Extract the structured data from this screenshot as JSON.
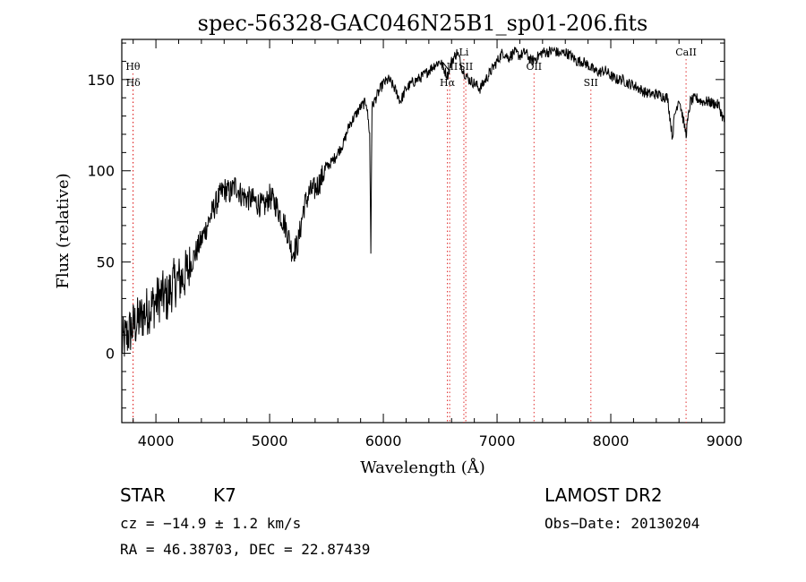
{
  "chart_data": {
    "type": "line",
    "title": "spec-56328-GAC046N25B1_sp01-206.fits",
    "xlabel": "Wavelength (Å)",
    "ylabel": "Flux (relative)",
    "xlim": [
      3700,
      9000
    ],
    "ylim": [
      -38,
      172
    ],
    "x_ticks": [
      4000,
      5000,
      6000,
      7000,
      8000,
      9000
    ],
    "y_ticks": [
      0,
      50,
      100,
      150
    ],
    "x_tick_labels": [
      "4000",
      "5000",
      "6000",
      "7000",
      "8000",
      "9000"
    ],
    "y_tick_labels": [
      "0",
      "50",
      "100",
      "150"
    ],
    "grid": false,
    "line_color": "#000000",
    "marker_color": "#e03030",
    "series": [
      {
        "x": [
          3700,
          3750,
          3800,
          3850,
          3900,
          3950,
          4000,
          4050,
          4100,
          4150,
          4200,
          4250,
          4300,
          4350,
          4400,
          4450,
          4500,
          4550,
          4600,
          4650,
          4700,
          4750,
          4800,
          4850,
          4900,
          4950,
          5000,
          5050,
          5100,
          5150,
          5200,
          5250,
          5300,
          5350,
          5400,
          5450,
          5500,
          5550,
          5600,
          5650,
          5700,
          5750,
          5800,
          5850,
          5880,
          5890,
          5900,
          5950,
          6000,
          6050,
          6100,
          6150,
          6200,
          6250,
          6300,
          6350,
          6400,
          6450,
          6500,
          6563,
          6600,
          6650,
          6700,
          6750,
          6800,
          6850,
          6900,
          6950,
          7000,
          7050,
          7100,
          7150,
          7200,
          7250,
          7300,
          7350,
          7400,
          7450,
          7500,
          7550,
          7600,
          7650,
          7700,
          7750,
          7800,
          7850,
          7900,
          7950,
          8000,
          8050,
          8100,
          8150,
          8200,
          8250,
          8300,
          8350,
          8400,
          8450,
          8500,
          8542,
          8560,
          8600,
          8662,
          8700,
          8750,
          8800,
          8850,
          8900,
          8950,
          8980,
          9000
        ],
        "y": [
          5,
          10,
          15,
          18,
          22,
          25,
          28,
          32,
          30,
          38,
          40,
          42,
          48,
          55,
          62,
          70,
          78,
          85,
          90,
          88,
          92,
          87,
          85,
          84,
          82,
          80,
          86,
          82,
          75,
          68,
          55,
          60,
          80,
          88,
          90,
          95,
          102,
          105,
          110,
          115,
          125,
          130,
          135,
          138,
          120,
          55,
          135,
          142,
          148,
          150,
          145,
          138,
          145,
          148,
          150,
          152,
          155,
          158,
          160,
          152,
          160,
          165,
          155,
          150,
          148,
          145,
          150,
          155,
          160,
          165,
          162,
          165,
          163,
          165,
          160,
          162,
          165,
          165,
          166,
          164,
          165,
          163,
          160,
          160,
          158,
          155,
          154,
          155,
          152,
          150,
          150,
          148,
          147,
          145,
          143,
          142,
          142,
          141,
          140,
          118,
          130,
          140,
          120,
          138,
          140,
          138,
          138,
          137,
          136,
          130,
          127
        ]
      }
    ],
    "markers": [
      {
        "label": "Hθ",
        "x": 3798,
        "row": 1
      },
      {
        "label": "Hδ",
        "x": 3800,
        "row": 2
      },
      {
        "label": "NII",
        "x": 6583,
        "row": 1
      },
      {
        "label": "Hα",
        "x": 6563,
        "row": 2
      },
      {
        "label": "Li",
        "x": 6708,
        "row": 0
      },
      {
        "label": "SII",
        "x": 6725,
        "row": 1
      },
      {
        "label": "OII",
        "x": 7325,
        "row": 1
      },
      {
        "label": "SII",
        "x": 7825,
        "row": 2
      },
      {
        "label": "CaII",
        "x": 8662,
        "row": 0
      }
    ]
  },
  "info": {
    "object_class": "STAR",
    "subclass": "K7",
    "survey": "LAMOST DR2",
    "cz": "cz = −14.9 ± 1.2 km/s",
    "obs_date": "Obs−Date: 20130204",
    "coords": "RA =  46.38703, DEC =  22.87439"
  }
}
